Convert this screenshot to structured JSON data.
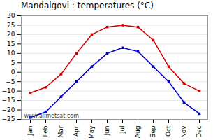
{
  "chart_data": {
    "type": "line",
    "title": "Mandalgovi : temperatures (°C)",
    "categories": [
      "Jan",
      "Feb",
      "Mar",
      "Apr",
      "May",
      "Jun",
      "Jul",
      "Aug",
      "Sep",
      "Oct",
      "Nov",
      "Dec"
    ],
    "series": [
      {
        "color": "#cc0000",
        "marker": "square",
        "values": [
          -11,
          -8,
          -1,
          10,
          20,
          24,
          25,
          24,
          17,
          3,
          -6,
          -10
        ]
      },
      {
        "color": "#0000cc",
        "marker": "square",
        "values": [
          -24,
          -21,
          -13,
          -5,
          3,
          10,
          13,
          11,
          3,
          -5,
          -16,
          -22
        ]
      }
    ],
    "ylim": [
      -25,
      30
    ],
    "yticks": [
      -25,
      -20,
      -15,
      -10,
      -5,
      0,
      5,
      10,
      15,
      20,
      25,
      30
    ],
    "grid": true,
    "annotation": "www.allmetsat.com"
  }
}
